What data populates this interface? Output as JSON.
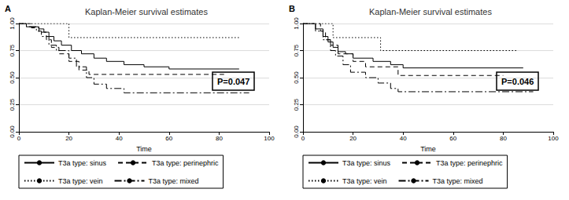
{
  "chart_data": [
    {
      "type": "line",
      "panel": "A",
      "title": "Kaplan-Meier survival estimates",
      "x_label": "Time",
      "annotation": "P=0.047",
      "xlim": [
        0,
        100
      ],
      "xticks": [
        0,
        20,
        40,
        60,
        80,
        100
      ],
      "ylim": [
        0,
        1
      ],
      "yticks": [
        {
          "value": 0,
          "label": "0.00"
        },
        {
          "value": 0.25,
          "label": "0.25"
        },
        {
          "value": 0.5,
          "label": "0.50"
        },
        {
          "value": 0.75,
          "label": "0.75"
        },
        {
          "value": 1,
          "label": "1.00"
        }
      ],
      "grid": true,
      "legend": "bottom",
      "series": [
        {
          "name": "T3a type: sinus",
          "color": "#000000",
          "line_style": "solid",
          "x": [
            0,
            3,
            8,
            10,
            12,
            14,
            17,
            21,
            25,
            30,
            35,
            42,
            50,
            60,
            88
          ],
          "values": [
            1.0,
            0.97,
            0.95,
            0.92,
            0.88,
            0.84,
            0.8,
            0.75,
            0.72,
            0.68,
            0.65,
            0.62,
            0.6,
            0.58,
            0.58
          ]
        },
        {
          "name": "T3a type: perinephric",
          "color": "#000000",
          "line_style": "dashed",
          "x": [
            0,
            5,
            8,
            11,
            13,
            16,
            20,
            24,
            28,
            82
          ],
          "values": [
            1.0,
            0.96,
            0.92,
            0.85,
            0.78,
            0.72,
            0.65,
            0.57,
            0.53,
            0.53
          ]
        },
        {
          "name": "T3a type: vein",
          "color": "#000000",
          "line_style": "dotted",
          "x": [
            0,
            20,
            88
          ],
          "values": [
            1.0,
            0.87,
            0.87
          ]
        },
        {
          "name": "T3a type: mixed",
          "color": "#000000",
          "line_style": "dashdot",
          "x": [
            0,
            3,
            7,
            9,
            12,
            15,
            20,
            23,
            27,
            30,
            35,
            42,
            92
          ],
          "values": [
            1.0,
            0.97,
            0.93,
            0.88,
            0.8,
            0.75,
            0.68,
            0.6,
            0.5,
            0.44,
            0.4,
            0.36,
            0.36
          ]
        }
      ]
    },
    {
      "type": "line",
      "panel": "B",
      "title": "Kaplan-Meier survival estimates",
      "x_label": "Time",
      "annotation": "P=0.046",
      "xlim": [
        0,
        100
      ],
      "xticks": [
        0,
        20,
        40,
        60,
        80,
        100
      ],
      "ylim": [
        0,
        1
      ],
      "yticks": [
        {
          "value": 0,
          "label": "0.00"
        },
        {
          "value": 0.25,
          "label": "0.25"
        },
        {
          "value": 0.5,
          "label": "0.50"
        },
        {
          "value": 0.75,
          "label": "0.75"
        },
        {
          "value": 1,
          "label": "1.00"
        }
      ],
      "grid": true,
      "legend": "bottom",
      "series": [
        {
          "name": "T3a type: sinus",
          "color": "#000000",
          "line_style": "solid",
          "x": [
            0,
            5,
            8,
            10,
            12,
            14,
            17,
            20,
            28,
            35,
            40,
            88
          ],
          "values": [
            1.0,
            0.95,
            0.88,
            0.83,
            0.78,
            0.74,
            0.72,
            0.68,
            0.65,
            0.62,
            0.59,
            0.59
          ]
        },
        {
          "name": "T3a type: perinephric",
          "color": "#000000",
          "line_style": "dashed",
          "x": [
            0,
            7,
            9,
            11,
            14,
            20,
            25,
            38,
            80
          ],
          "values": [
            1.0,
            0.93,
            0.85,
            0.8,
            0.72,
            0.65,
            0.6,
            0.52,
            0.52
          ]
        },
        {
          "name": "T3a type: vein",
          "color": "#000000",
          "line_style": "dotted",
          "x": [
            0,
            7,
            12,
            31,
            86
          ],
          "values": [
            1.0,
            1.0,
            0.87,
            0.75,
            0.75
          ]
        },
        {
          "name": "T3a type: mixed",
          "color": "#000000",
          "line_style": "dashdot",
          "x": [
            0,
            5,
            8,
            11,
            13,
            16,
            19,
            25,
            30,
            35,
            38,
            92
          ],
          "values": [
            1.0,
            0.93,
            0.85,
            0.75,
            0.7,
            0.62,
            0.55,
            0.5,
            0.45,
            0.4,
            0.37,
            0.37
          ]
        }
      ]
    }
  ]
}
